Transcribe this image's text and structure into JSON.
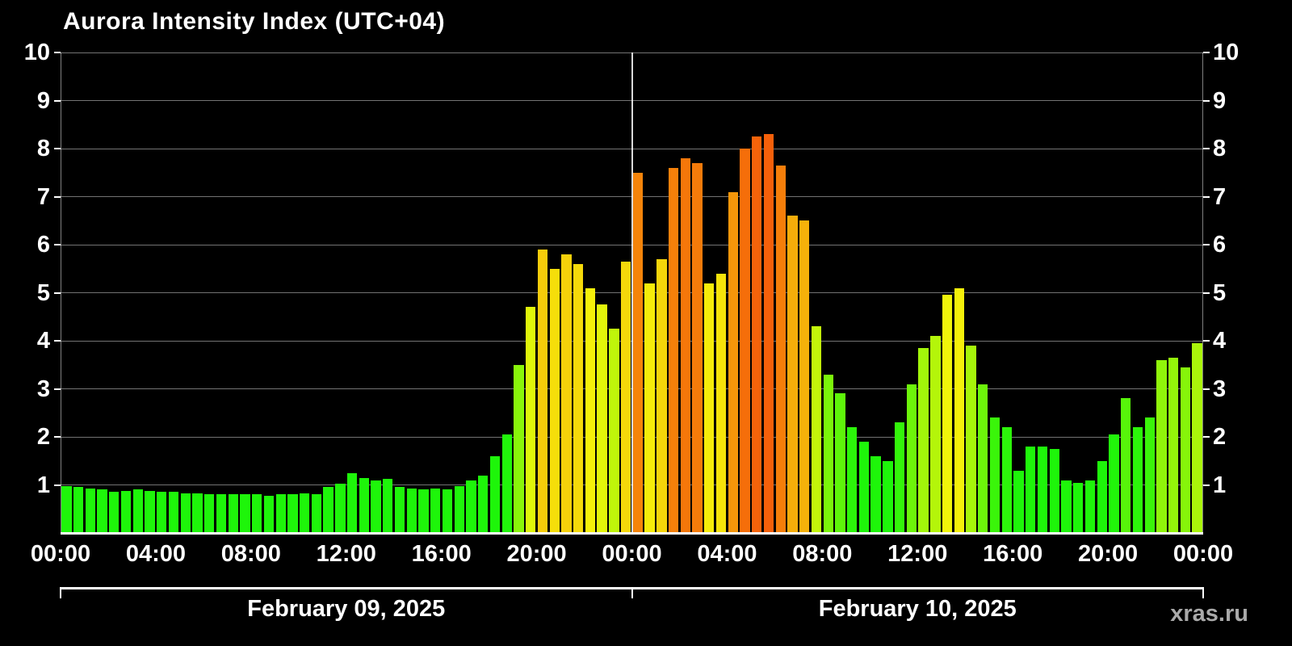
{
  "watermark": "xras.ru",
  "chart_data": {
    "type": "bar",
    "title": "Aurora Intensity Index (UTC+04)",
    "start_date": "February 09, 2025",
    "interval_minutes": 30,
    "hours_span": 48,
    "ylim": [
      0,
      10
    ],
    "yticks": [
      1,
      2,
      3,
      4,
      5,
      6,
      7,
      8,
      9,
      10
    ],
    "grid": true,
    "background": "#000000",
    "legend_position": "none",
    "xticks": [
      {
        "hour": 0,
        "label": "00:00"
      },
      {
        "hour": 4,
        "label": "04:00"
      },
      {
        "hour": 8,
        "label": "08:00"
      },
      {
        "hour": 12,
        "label": "12:00"
      },
      {
        "hour": 16,
        "label": "16:00"
      },
      {
        "hour": 20,
        "label": "20:00"
      },
      {
        "hour": 24,
        "label": "00:00"
      },
      {
        "hour": 28,
        "label": "04:00"
      },
      {
        "hour": 32,
        "label": "08:00"
      },
      {
        "hour": 36,
        "label": "12:00"
      },
      {
        "hour": 40,
        "label": "16:00"
      },
      {
        "hour": 44,
        "label": "20:00"
      },
      {
        "hour": 48,
        "label": "00:00"
      }
    ],
    "day_labels": [
      "February 09, 2025",
      "February 10, 2025"
    ],
    "day_divider_hour": 24,
    "color_scale": [
      {
        "value": 1.0,
        "color": "#2fd410"
      },
      {
        "value": 3.5,
        "color": "#a8e000"
      },
      {
        "value": 5.0,
        "color": "#f0e000"
      },
      {
        "value": 6.5,
        "color": "#ffb300"
      },
      {
        "value": 7.5,
        "color": "#ff8400"
      },
      {
        "value": 8.3,
        "color": "#ff5a00"
      }
    ],
    "values": [
      0.97,
      0.95,
      0.92,
      0.9,
      0.85,
      0.88,
      0.9,
      0.87,
      0.86,
      0.85,
      0.83,
      0.82,
      0.8,
      0.8,
      0.8,
      0.8,
      0.8,
      0.78,
      0.8,
      0.8,
      0.82,
      0.8,
      0.95,
      1.02,
      1.25,
      1.15,
      1.1,
      1.13,
      0.95,
      0.92,
      0.9,
      0.92,
      0.9,
      0.97,
      1.1,
      1.2,
      1.6,
      2.05,
      3.5,
      4.7,
      5.9,
      5.5,
      5.8,
      5.6,
      5.1,
      4.75,
      4.25,
      5.65,
      7.5,
      5.2,
      5.7,
      7.6,
      7.8,
      7.7,
      5.2,
      5.4,
      7.1,
      8.0,
      8.25,
      8.3,
      7.65,
      6.6,
      6.5,
      4.3,
      3.3,
      2.9,
      2.2,
      1.9,
      1.6,
      1.5,
      2.3,
      3.1,
      3.85,
      4.1,
      4.95,
      5.1,
      3.9,
      3.1,
      2.4,
      2.2,
      1.3,
      1.8,
      1.8,
      1.75,
      1.1,
      1.05,
      1.1,
      1.5,
      2.05,
      2.8,
      2.2,
      2.4,
      3.6,
      3.65,
      3.45,
      3.95
    ]
  }
}
